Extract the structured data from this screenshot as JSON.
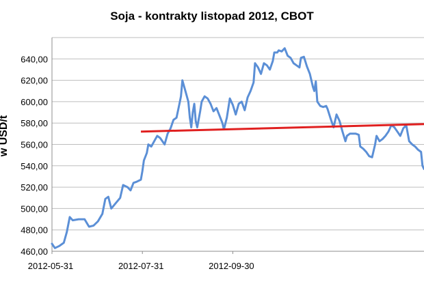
{
  "chart_data": {
    "type": "line",
    "title": "Soja - kontrakty listopad 2012, CBOT",
    "ylabel": "w USD/t",
    "xlabel": "",
    "ylim": [
      460,
      660
    ],
    "yticks": [
      "460,00",
      "480,00",
      "500,00",
      "520,00",
      "540,00",
      "560,00",
      "580,00",
      "600,00",
      "620,00",
      "640,00"
    ],
    "xticks": [
      "2012-05-31",
      "2012-07-31",
      "2012-09-30"
    ],
    "grid": true,
    "legend": "none",
    "colors": {
      "price_line": "#5b8fd6",
      "trend_line": "#e02020",
      "grid": "#bdbdbd",
      "axis": "#8c8c8c"
    },
    "series": [
      {
        "values": [
          [
            0,
            467
          ],
          [
            2,
            463
          ],
          [
            5,
            465
          ],
          [
            8,
            468
          ],
          [
            10,
            478
          ],
          [
            12,
            492
          ],
          [
            14,
            489
          ],
          [
            18,
            490
          ],
          [
            22,
            490
          ],
          [
            25,
            483
          ],
          [
            28,
            484
          ],
          [
            31,
            488
          ],
          [
            34,
            495
          ],
          [
            36,
            509
          ],
          [
            38,
            511
          ],
          [
            40,
            500
          ],
          [
            43,
            505
          ],
          [
            46,
            510
          ],
          [
            48,
            522
          ],
          [
            51,
            520
          ],
          [
            53,
            517
          ],
          [
            55,
            524
          ],
          [
            57,
            525
          ],
          [
            60,
            527
          ],
          [
            61,
            535
          ],
          [
            62,
            545
          ],
          [
            64,
            552
          ],
          [
            65,
            560
          ],
          [
            67,
            558
          ],
          [
            69,
            563
          ],
          [
            71,
            568
          ],
          [
            73,
            566
          ],
          [
            76,
            560
          ],
          [
            78,
            570
          ],
          [
            80,
            575
          ],
          [
            82,
            583
          ],
          [
            84,
            585
          ],
          [
            86,
            598
          ],
          [
            87,
            605
          ],
          [
            88,
            620
          ],
          [
            90,
            610
          ],
          [
            92,
            600
          ],
          [
            93,
            585
          ],
          [
            94,
            576
          ],
          [
            95,
            590
          ],
          [
            96,
            598
          ],
          [
            97,
            582
          ],
          [
            98,
            576
          ],
          [
            100,
            591
          ],
          [
            101,
            600
          ],
          [
            103,
            605
          ],
          [
            105,
            603
          ],
          [
            107,
            598
          ],
          [
            109,
            591
          ],
          [
            111,
            594
          ],
          [
            113,
            587
          ],
          [
            115,
            580
          ],
          [
            116,
            574
          ],
          [
            118,
            585
          ],
          [
            120,
            603
          ],
          [
            122,
            597
          ],
          [
            124,
            588
          ],
          [
            126,
            598
          ],
          [
            128,
            600
          ],
          [
            130,
            592
          ],
          [
            132,
            604
          ],
          [
            134,
            610
          ],
          [
            136,
            618
          ],
          [
            137,
            636
          ],
          [
            139,
            632
          ],
          [
            141,
            626
          ],
          [
            143,
            636
          ],
          [
            145,
            634
          ],
          [
            147,
            630
          ],
          [
            149,
            638
          ],
          [
            150,
            646
          ],
          [
            152,
            646
          ],
          [
            153,
            648
          ],
          [
            155,
            647
          ],
          [
            157,
            650
          ],
          [
            159,
            643
          ],
          [
            161,
            641
          ],
          [
            163,
            636
          ],
          [
            165,
            634
          ],
          [
            167,
            632
          ],
          [
            168,
            641
          ],
          [
            170,
            642
          ],
          [
            172,
            633
          ],
          [
            174,
            626
          ],
          [
            176,
            614
          ],
          [
            177,
            610
          ],
          [
            178,
            619
          ],
          [
            179,
            600
          ],
          [
            181,
            596
          ],
          [
            183,
            595
          ],
          [
            185,
            596
          ],
          [
            186,
            593
          ],
          [
            188,
            584
          ],
          [
            190,
            576
          ],
          [
            192,
            588
          ],
          [
            194,
            582
          ],
          [
            196,
            572
          ],
          [
            198,
            563
          ],
          [
            199,
            568
          ],
          [
            201,
            570
          ],
          [
            203,
            570
          ],
          [
            205,
            570
          ],
          [
            207,
            569
          ],
          [
            208,
            558
          ],
          [
            210,
            556
          ],
          [
            212,
            553
          ],
          [
            214,
            549
          ],
          [
            216,
            548
          ],
          [
            218,
            560
          ],
          [
            219,
            568
          ],
          [
            221,
            563
          ],
          [
            223,
            565
          ],
          [
            225,
            568
          ],
          [
            227,
            572
          ],
          [
            229,
            578
          ],
          [
            231,
            576
          ],
          [
            233,
            572
          ],
          [
            235,
            568
          ],
          [
            237,
            575
          ],
          [
            239,
            578
          ],
          [
            241,
            563
          ],
          [
            243,
            560
          ],
          [
            245,
            558
          ],
          [
            247,
            555
          ],
          [
            248,
            554
          ],
          [
            249,
            553
          ],
          [
            250,
            540
          ],
          [
            251,
            537
          ]
        ]
      },
      {
        "values": [
          [
            60,
            572
          ],
          [
            251,
            579
          ]
        ]
      }
    ]
  }
}
